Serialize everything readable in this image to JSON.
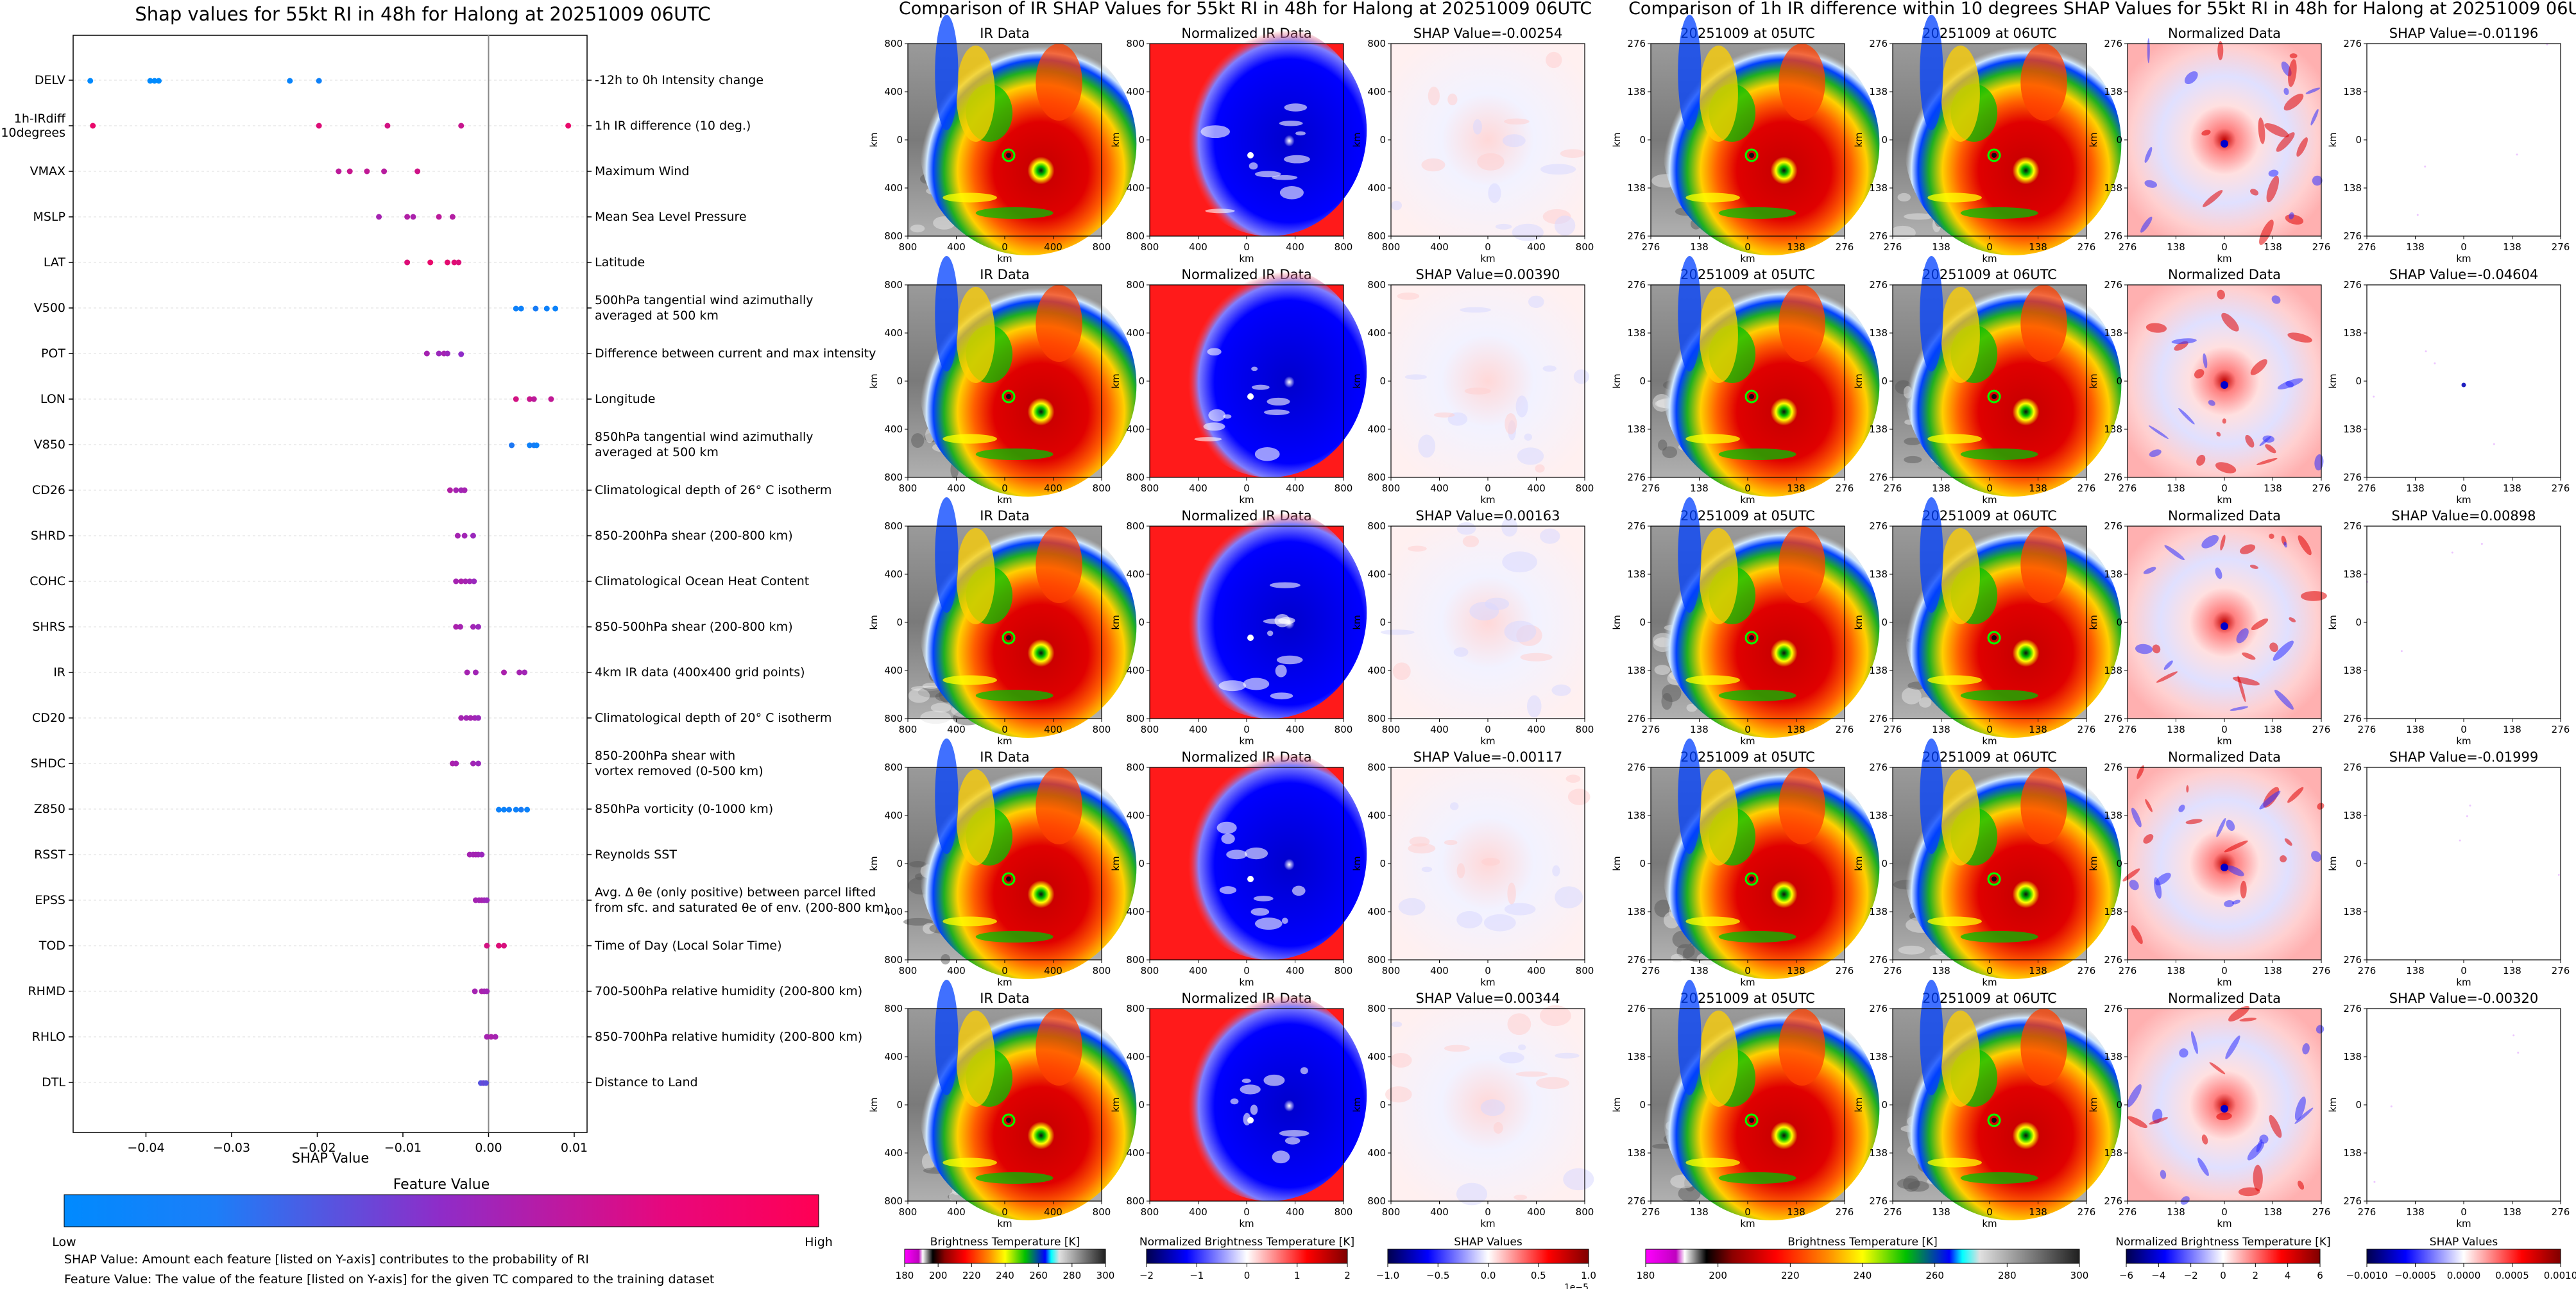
{
  "chart_data": [
    {
      "type": "scatter",
      "title": "Shap values for 55kt RI in 48h for Halong at 20251009 06UTC",
      "xlabel": "SHAP Value",
      "xlim": [
        -0.0485,
        0.0115
      ],
      "x_ticks": [
        -0.04,
        -0.03,
        -0.02,
        -0.01,
        0.0,
        0.01
      ],
      "x_tick_labels": [
        "−0.04",
        "−0.03",
        "−0.02",
        "−0.01",
        "0.00",
        "0.01"
      ],
      "grid": true,
      "colorbar": {
        "title": "Feature Value",
        "low_label": "Low",
        "high_label": "High",
        "low_color": "#008afe",
        "mid_color": "#8f2cc8",
        "high_color": "#ff0054"
      },
      "notes": [
        "SHAP Value: Amount each feature [listed on Y-axis] contributes to the probability of RI",
        "Feature Value: The value of the feature [listed on Y-axis] for the given TC compared to the training dataset"
      ],
      "features": [
        {
          "code": "DELV",
          "desc": "-12h to 0h Intensity change",
          "points": [
            [
              -0.0465,
              0.0
            ],
            [
              -0.0395,
              0.0
            ],
            [
              -0.039,
              0.0
            ],
            [
              -0.0385,
              0.0
            ],
            [
              -0.0232,
              0.03
            ],
            [
              -0.0198,
              0.05
            ]
          ]
        },
        {
          "code": "1h-IRdiff\n10degrees",
          "desc": "1h IR difference (10 deg.)",
          "points": [
            [
              -0.0462,
              0.9
            ],
            [
              -0.0198,
              0.85
            ],
            [
              -0.0118,
              0.8
            ],
            [
              -0.0032,
              0.75
            ],
            [
              0.0093,
              0.9
            ]
          ]
        },
        {
          "code": "VMAX",
          "desc": "Maximum Wind",
          "points": [
            [
              -0.0175,
              0.7
            ],
            [
              -0.0162,
              0.75
            ],
            [
              -0.0142,
              0.72
            ],
            [
              -0.0122,
              0.68
            ],
            [
              -0.0083,
              0.78
            ]
          ]
        },
        {
          "code": "MSLP",
          "desc": "Mean Sea Level Pressure",
          "points": [
            [
              -0.0128,
              0.6
            ],
            [
              -0.0095,
              0.65
            ],
            [
              -0.0088,
              0.62
            ],
            [
              -0.0058,
              0.7
            ],
            [
              -0.0042,
              0.66
            ]
          ]
        },
        {
          "code": "LAT",
          "desc": "Latitude",
          "points": [
            [
              -0.0095,
              0.85
            ],
            [
              -0.0068,
              0.9
            ],
            [
              -0.0048,
              0.88
            ],
            [
              -0.004,
              0.86
            ],
            [
              -0.0035,
              0.84
            ]
          ]
        },
        {
          "code": "V500",
          "desc": "500hPa tangential wind azimuthally\naveraged at 500 km",
          "points": [
            [
              0.0032,
              0.05
            ],
            [
              0.0038,
              0.05
            ],
            [
              0.0055,
              0.08
            ],
            [
              0.0068,
              0.05
            ],
            [
              0.0078,
              0.04
            ]
          ]
        },
        {
          "code": "POT",
          "desc": "Difference between current and max intensity",
          "points": [
            [
              -0.0072,
              0.6
            ],
            [
              -0.0058,
              0.55
            ],
            [
              -0.0052,
              0.6
            ],
            [
              -0.0048,
              0.55
            ],
            [
              -0.0032,
              0.5
            ]
          ]
        },
        {
          "code": "LON",
          "desc": "Longitude",
          "points": [
            [
              0.0032,
              0.8
            ],
            [
              0.0048,
              0.75
            ],
            [
              0.0053,
              0.7
            ],
            [
              0.0073,
              0.72
            ]
          ]
        },
        {
          "code": "V850",
          "desc": "850hPa tangential wind azimuthally\naveraged at 500 km",
          "points": [
            [
              0.0027,
              0.1
            ],
            [
              0.0048,
              0.05
            ],
            [
              0.0053,
              0.08
            ],
            [
              0.0056,
              0.04
            ]
          ]
        },
        {
          "code": "CD26",
          "desc": "Climatological depth of 26° C isotherm",
          "points": [
            [
              -0.0045,
              0.65
            ],
            [
              -0.0038,
              0.6
            ],
            [
              -0.0032,
              0.58
            ],
            [
              -0.0028,
              0.6
            ]
          ]
        },
        {
          "code": "SHRD",
          "desc": "850-200hPa shear (200-800 km)",
          "points": [
            [
              -0.0036,
              0.6
            ],
            [
              -0.0028,
              0.58
            ],
            [
              -0.0018,
              0.55
            ]
          ]
        },
        {
          "code": "COHC",
          "desc": "Climatological Ocean Heat Content",
          "points": [
            [
              -0.0038,
              0.6
            ],
            [
              -0.0032,
              0.62
            ],
            [
              -0.0027,
              0.6
            ],
            [
              -0.0022,
              0.58
            ],
            [
              -0.0017,
              0.55
            ]
          ]
        },
        {
          "code": "SHRS",
          "desc": "850-500hPa shear (200-800 km)",
          "points": [
            [
              -0.0038,
              0.62
            ],
            [
              -0.0033,
              0.6
            ],
            [
              -0.0018,
              0.58
            ],
            [
              -0.0012,
              0.55
            ]
          ]
        },
        {
          "code": "IR",
          "desc": "4km IR data (400x400 grid points)",
          "points": [
            [
              -0.0025,
              0.6
            ],
            [
              -0.0015,
              0.58
            ],
            [
              0.0018,
              0.62
            ],
            [
              0.0036,
              0.6
            ],
            [
              0.0042,
              0.58
            ]
          ]
        },
        {
          "code": "CD20",
          "desc": "Climatological depth of 20° C isotherm",
          "points": [
            [
              -0.0032,
              0.6
            ],
            [
              -0.0026,
              0.58
            ],
            [
              -0.0021,
              0.6
            ],
            [
              -0.0016,
              0.58
            ],
            [
              -0.0012,
              0.55
            ]
          ]
        },
        {
          "code": "SHDC",
          "desc": "850-200hPa shear with\nvortex removed (0-500 km)",
          "points": [
            [
              -0.0042,
              0.62
            ],
            [
              -0.0038,
              0.6
            ],
            [
              -0.0018,
              0.58
            ],
            [
              -0.0012,
              0.55
            ]
          ]
        },
        {
          "code": "Z850",
          "desc": "850hPa vorticity (0-1000 km)",
          "points": [
            [
              0.0012,
              0.05
            ],
            [
              0.0018,
              0.04
            ],
            [
              0.0024,
              0.06
            ],
            [
              0.0032,
              0.05
            ],
            [
              0.0038,
              0.08
            ],
            [
              0.0045,
              0.04
            ]
          ]
        },
        {
          "code": "RSST",
          "desc": "Reynolds SST",
          "points": [
            [
              -0.0022,
              0.6
            ],
            [
              -0.0018,
              0.58
            ],
            [
              -0.0015,
              0.6
            ],
            [
              -0.0012,
              0.58
            ],
            [
              -0.0008,
              0.55
            ]
          ]
        },
        {
          "code": "EPSS",
          "desc": "Avg. Δ θe (only positive) between parcel lifted\nfrom sfc. and saturated θe of env. (200-800 km)",
          "points": [
            [
              -0.0015,
              0.6
            ],
            [
              -0.0011,
              0.58
            ],
            [
              -0.0008,
              0.6
            ],
            [
              -0.0005,
              0.58
            ],
            [
              -0.0002,
              0.55
            ]
          ]
        },
        {
          "code": "TOD",
          "desc": "Time of Day (Local Solar Time)",
          "points": [
            [
              -0.0002,
              0.8
            ],
            [
              0.0012,
              0.85
            ],
            [
              0.0018,
              0.82
            ]
          ]
        },
        {
          "code": "RHMD",
          "desc": "700-500hPa relative humidity (200-800 km)",
          "points": [
            [
              -0.0016,
              0.6
            ],
            [
              -0.0008,
              0.62
            ],
            [
              -0.0005,
              0.6
            ],
            [
              -0.0002,
              0.58
            ]
          ]
        },
        {
          "code": "RHLO",
          "desc": "850-700hPa relative humidity (200-800 km)",
          "points": [
            [
              -0.0002,
              0.6
            ],
            [
              0.0003,
              0.62
            ],
            [
              0.0008,
              0.6
            ]
          ]
        },
        {
          "code": "DTL",
          "desc": "Distance to Land",
          "points": [
            [
              -0.0009,
              0.3
            ],
            [
              -0.0006,
              0.35
            ],
            [
              -0.0003,
              0.32
            ]
          ]
        }
      ]
    },
    {
      "type": "heatmap",
      "title": "Comparison of IR SHAP Values for 55kt RI in 48h for Halong at 20251009 06UTC",
      "xlabel": "km",
      "ylabel": "km",
      "tick_labels": [
        "800",
        "400",
        "0",
        "400",
        "800"
      ],
      "columns": [
        {
          "title": "IR Data",
          "kind": "ir"
        },
        {
          "title": "Normalized IR Data",
          "kind": "norm"
        },
        {
          "title": "SHAP",
          "kind": "shap"
        }
      ],
      "shap_values": [
        "SHAP Value=-0.00254",
        "SHAP Value=0.00390",
        "SHAP Value=0.00163",
        "SHAP Value=-0.00117",
        "SHAP Value=0.00344"
      ],
      "colorbars": [
        {
          "label": "Brightness Temperature [K]",
          "ticks": [
            "180",
            "200",
            "220",
            "240",
            "260",
            "280",
            "300"
          ],
          "scheme": "ir"
        },
        {
          "label": "Normalized Brightness Temperature [K]",
          "ticks": [
            "−2",
            "−1",
            "0",
            "1",
            "2"
          ],
          "scheme": "bwr"
        },
        {
          "label": "SHAP Values",
          "ticks": [
            "−1.0",
            "−0.5",
            "0.0",
            "0.5",
            "1.0"
          ],
          "scheme": "bwr",
          "offset": "1e−5"
        }
      ]
    },
    {
      "type": "heatmap",
      "title": "Comparison of 1h IR difference within 10 degrees SHAP Values for 55kt RI in 48h for Halong at 20251009 06UTC",
      "xlabel": "km",
      "ylabel": "km",
      "tick_labels": [
        "276",
        "138",
        "0",
        "138",
        "276"
      ],
      "columns": [
        {
          "title": "20251009 at 05UTC",
          "kind": "ir"
        },
        {
          "title": "20251009 at 06UTC",
          "kind": "ir"
        },
        {
          "title": "Normalized Data",
          "kind": "normdiff"
        },
        {
          "title": "SHAP",
          "kind": "shapfaint"
        }
      ],
      "shap_values": [
        "SHAP Value=-0.01196",
        "SHAP Value=-0.04604",
        "SHAP Value=0.00898",
        "SHAP Value=-0.01999",
        "SHAP Value=-0.00320"
      ],
      "colorbars": [
        {
          "label": "Brightness Temperature [K]",
          "ticks": [
            "180",
            "200",
            "220",
            "240",
            "260",
            "280",
            "300"
          ],
          "scheme": "ir"
        },
        {
          "label": "Normalized Brightness Temperature [K]",
          "ticks": [
            "−6",
            "−4",
            "−2",
            "0",
            "2",
            "4",
            "6"
          ],
          "scheme": "bwr"
        },
        {
          "label": "SHAP Values",
          "ticks": [
            "−0.0010",
            "−0.0005",
            "0.0000",
            "0.0005",
            "0.0010"
          ],
          "scheme": "bwr"
        }
      ]
    }
  ]
}
